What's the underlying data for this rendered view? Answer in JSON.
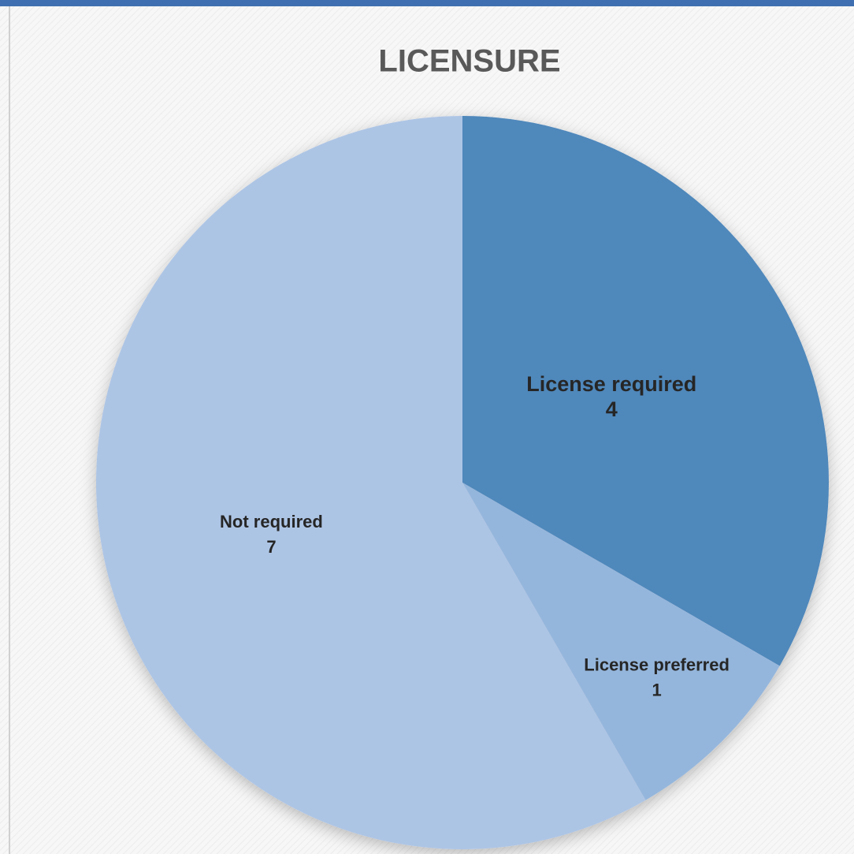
{
  "chart_data": {
    "type": "pie",
    "title": "LICENSURE",
    "categories": [
      "License required",
      "License preferred",
      "Not required"
    ],
    "values": [
      4,
      1,
      7
    ],
    "colors": [
      "#4f88bb",
      "#95b6dc",
      "#adc5e5"
    ]
  }
}
